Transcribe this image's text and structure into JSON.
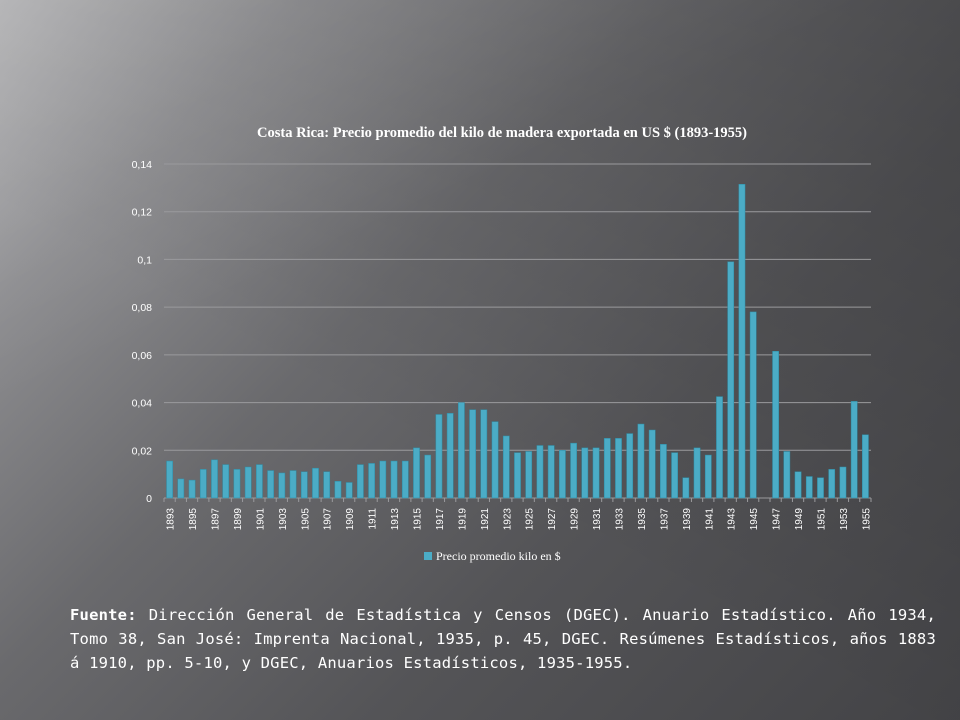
{
  "slide": {
    "source_label": "Fuente:",
    "source_text": "Dirección General de Estadística y Censos (DGEC). Anuario Estadístico. Año 1934, Tomo 38, San José: Imprenta Nacional, 1935, p. 45, DGEC. Resúmenes Estadísticos, años 1883 á 1910, pp. 5-10, y DGEC, Anuarios Estadísticos, 1935-1955."
  },
  "colors": {
    "bar": "#4bacc6",
    "bar_edge": "#2f8fa8",
    "grid": "#9a9a9d",
    "text": "#ffffff"
  },
  "chart_data": {
    "type": "bar",
    "title": "Costa Rica: Precio promedio del kilo de madera exportada en US $ (1893-1955)",
    "xlabel": "",
    "ylabel": "",
    "ylim": [
      0,
      0.14
    ],
    "y_ticks": [
      {
        "value": 0,
        "label": "0"
      },
      {
        "value": 0.02,
        "label": "0,02"
      },
      {
        "value": 0.04,
        "label": "0,04"
      },
      {
        "value": 0.06,
        "label": "0,06"
      },
      {
        "value": 0.08,
        "label": "0,08"
      },
      {
        "value": 0.1,
        "label": "0,1"
      },
      {
        "value": 0.12,
        "label": "0,12"
      },
      {
        "value": 0.14,
        "label": "0,14"
      }
    ],
    "x_tick_labels": [
      "1893",
      "1895",
      "1897",
      "1899",
      "1901",
      "1903",
      "1905",
      "1907",
      "1909",
      "1911",
      "1913",
      "1915",
      "1917",
      "1919",
      "1921",
      "1923",
      "1925",
      "1927",
      "1929",
      "1931",
      "1933",
      "1935",
      "1937",
      "1939",
      "1941",
      "1943",
      "1945",
      "1947",
      "1949",
      "1951",
      "1953",
      "1955"
    ],
    "grid": true,
    "legend_position": "bottom",
    "series": [
      {
        "name": "Precio promedio kilo en $",
        "x": [
          1893,
          1894,
          1895,
          1896,
          1897,
          1898,
          1899,
          1900,
          1901,
          1902,
          1903,
          1904,
          1905,
          1906,
          1907,
          1908,
          1909,
          1910,
          1911,
          1912,
          1913,
          1914,
          1915,
          1916,
          1917,
          1918,
          1919,
          1920,
          1921,
          1922,
          1923,
          1924,
          1925,
          1926,
          1927,
          1928,
          1929,
          1930,
          1931,
          1932,
          1933,
          1934,
          1935,
          1936,
          1937,
          1938,
          1939,
          1940,
          1941,
          1942,
          1943,
          1944,
          1945,
          1946,
          1947,
          1948,
          1949,
          1950,
          1951,
          1952,
          1953,
          1954,
          1955
        ],
        "values": [
          0.0155,
          0.008,
          0.0075,
          0.012,
          0.016,
          0.014,
          0.012,
          0.013,
          0.014,
          0.0115,
          0.0105,
          0.0115,
          0.011,
          0.0125,
          0.011,
          0.007,
          0.0065,
          0.014,
          0.0145,
          0.0155,
          0.0155,
          0.0155,
          0.021,
          0.018,
          0.035,
          0.0355,
          0.04,
          0.037,
          0.037,
          0.032,
          0.026,
          0.019,
          0.0195,
          0.022,
          0.022,
          0.02,
          0.023,
          0.021,
          0.021,
          0.025,
          0.025,
          0.027,
          0.031,
          0.0285,
          0.0225,
          0.019,
          0.0085,
          0.021,
          0.018,
          0.0425,
          0.099,
          0.1315,
          0.078,
          0.0,
          0.0615,
          0.0195,
          0.011,
          0.009,
          0.0085,
          0.012,
          0.013,
          0.0405,
          0.0265
        ]
      }
    ]
  }
}
